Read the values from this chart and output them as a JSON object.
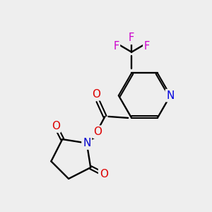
{
  "background_color": "#eeeeee",
  "bond_color": "#000000",
  "atom_colors": {
    "N_pyridine": "#0000dd",
    "N_succinimide": "#0000cc",
    "O": "#dd0000",
    "F": "#cc00cc",
    "C": "#000000"
  },
  "figsize": [
    3.0,
    3.0
  ],
  "dpi": 100
}
